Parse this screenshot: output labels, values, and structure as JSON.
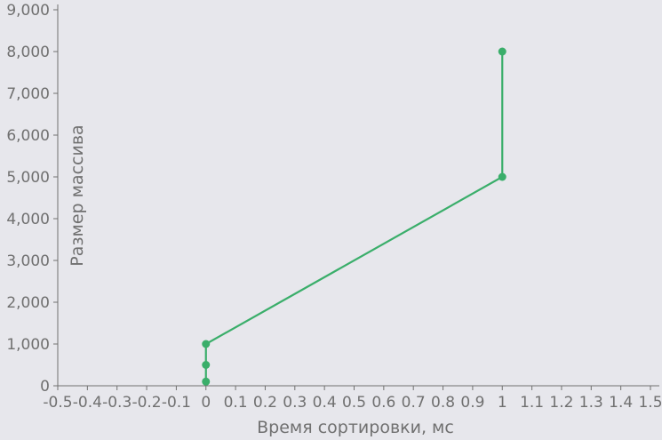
{
  "chart_data": {
    "type": "line",
    "title": "",
    "xlabel": "Время сортировки, мс",
    "ylabel": "Размер массива",
    "xlim": [
      -0.5,
      1.5
    ],
    "ylim": [
      0,
      9000
    ],
    "x_ticks": [
      "-0.5",
      "-0.4",
      "-0.3",
      "-0.2",
      "-0.1",
      "0",
      "0.1",
      "0.2",
      "0.3",
      "0.4",
      "0.5",
      "0.6",
      "0.7",
      "0.8",
      "0.9",
      "1",
      "1.1",
      "1.2",
      "1.3",
      "1.4",
      "1.5"
    ],
    "y_ticks": [
      "0",
      "1,000",
      "2,000",
      "3,000",
      "4,000",
      "5,000",
      "6,000",
      "7,000",
      "8,000",
      "9,000"
    ],
    "series": [
      {
        "name": "Размер массива",
        "color": "#3aae6a",
        "x": [
          0,
          0,
          0,
          1,
          1
        ],
        "y": [
          100,
          500,
          1000,
          5000,
          8000
        ]
      }
    ]
  }
}
